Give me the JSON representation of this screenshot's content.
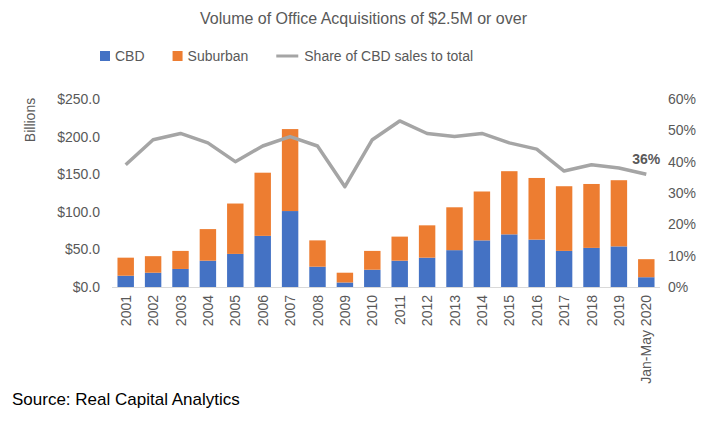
{
  "chart_data": {
    "type": "bar",
    "title": "Volume of Office Acquisitions of $2.5M or over",
    "y_label": "Billions",
    "source": "Source: Real Capital Analytics",
    "categories": [
      "2001",
      "2002",
      "2003",
      "2004",
      "2005",
      "2006",
      "2007",
      "2008",
      "2009",
      "2010",
      "2011",
      "2012",
      "2013",
      "2014",
      "2015",
      "2016",
      "2017",
      "2018",
      "2019",
      "Jan-May 2020"
    ],
    "stacked": true,
    "grid": false,
    "legend": "top",
    "series": [
      {
        "name": "CBD",
        "type": "bar",
        "color": "#4472c4",
        "values": [
          15,
          19,
          24,
          35,
          44,
          68,
          101,
          27,
          6,
          23,
          35,
          39,
          49,
          62,
          70,
          63,
          48,
          52,
          54,
          13
        ]
      },
      {
        "name": "Suburban",
        "type": "bar",
        "color": "#ed7d31",
        "values": [
          24,
          22,
          24,
          42,
          67,
          84,
          109,
          35,
          13,
          25,
          32,
          43,
          57,
          65,
          84,
          82,
          86,
          85,
          88,
          24
        ]
      },
      {
        "name": "Share of CBD sales to total",
        "type": "line",
        "axis": "y2",
        "color": "#a5a5a5",
        "values": [
          39,
          47,
          49,
          46,
          40,
          45,
          48,
          45,
          32,
          47,
          53,
          49,
          48,
          49,
          46,
          44,
          37,
          39,
          38,
          36
        ],
        "value_labels": [
          null,
          null,
          null,
          null,
          null,
          null,
          null,
          null,
          null,
          null,
          null,
          null,
          null,
          null,
          null,
          null,
          null,
          null,
          null,
          "36%"
        ]
      }
    ],
    "ylim": [
      0,
      250
    ],
    "yticks": [
      {
        "value": 0,
        "label": "$0.0"
      },
      {
        "value": 50,
        "label": "$50.0"
      },
      {
        "value": 100,
        "label": "$100.0"
      },
      {
        "value": 150,
        "label": "$150.0"
      },
      {
        "value": 200,
        "label": "$200.0"
      },
      {
        "value": 250,
        "label": "$250.0"
      }
    ],
    "y2lim": [
      0,
      60
    ],
    "y2ticks": [
      {
        "value": 0,
        "label": "0%"
      },
      {
        "value": 10,
        "label": "10%"
      },
      {
        "value": 20,
        "label": "20%"
      },
      {
        "value": 30,
        "label": "30%"
      },
      {
        "value": 40,
        "label": "40%"
      },
      {
        "value": 50,
        "label": "50%"
      },
      {
        "value": 60,
        "label": "60%"
      }
    ]
  }
}
